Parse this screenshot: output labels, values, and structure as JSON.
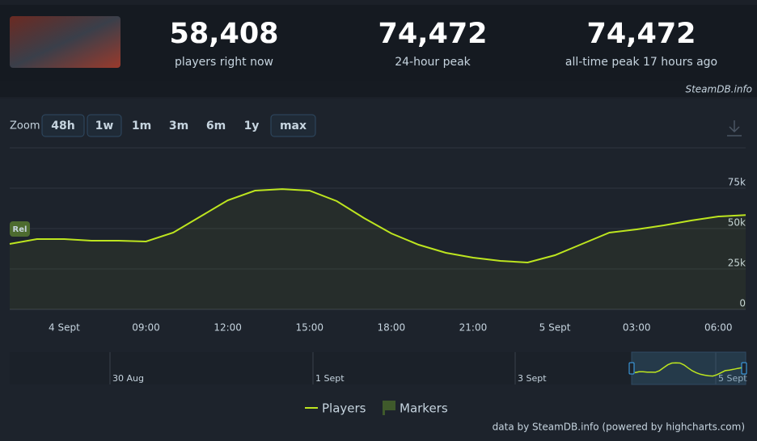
{
  "header": {
    "stats": [
      {
        "value": "58,408",
        "label": "players right now"
      },
      {
        "value": "74,472",
        "label": "24-hour peak"
      },
      {
        "value": "74,472",
        "label": "all-time peak 17 hours ago"
      }
    ],
    "watermark": "SteamDB.info"
  },
  "toolbar": {
    "label": "Zoom",
    "buttons": [
      {
        "label": "48h",
        "active": true
      },
      {
        "label": "1w",
        "active": true
      },
      {
        "label": "1m",
        "active": false
      },
      {
        "label": "3m",
        "active": false
      },
      {
        "label": "6m",
        "active": false
      },
      {
        "label": "1y",
        "active": false
      },
      {
        "label": "max",
        "active": true
      }
    ]
  },
  "chart_data": {
    "type": "line",
    "categories": [
      null,
      null,
      "4 Sept",
      null,
      null,
      "09:00",
      null,
      null,
      "12:00",
      null,
      null,
      "15:00",
      null,
      null,
      "18:00",
      null,
      null,
      "21:00",
      null,
      null,
      "5 Sept",
      null,
      null,
      "03:00",
      null,
      null,
      "06:00",
      null
    ],
    "series": [
      {
        "name": "Players",
        "color": "#bde51f",
        "values": [
          40500,
          43500,
          43500,
          42500,
          42500,
          42000,
          47500,
          57500,
          67500,
          73500,
          74472,
          73500,
          67000,
          56500,
          47000,
          40000,
          35000,
          32000,
          30000,
          29000,
          33500,
          40500,
          47500,
          49500,
          52000,
          55000,
          57500,
          58408
        ]
      }
    ],
    "ylim": [
      0,
      100000
    ],
    "yticks": [
      0,
      {
        "value": 25000,
        "label": "25k"
      },
      {
        "value": 50000,
        "label": "50k"
      },
      {
        "value": 75000,
        "label": "75k"
      }
    ],
    "grid": true,
    "badge": "Rel",
    "marker_legend": "Markers",
    "navigator_labels": [
      "30 Aug",
      "1 Sept",
      "3 Sept",
      "5 Sept"
    ],
    "credits": "data by SteamDB.info (powered by highcharts.com)"
  }
}
